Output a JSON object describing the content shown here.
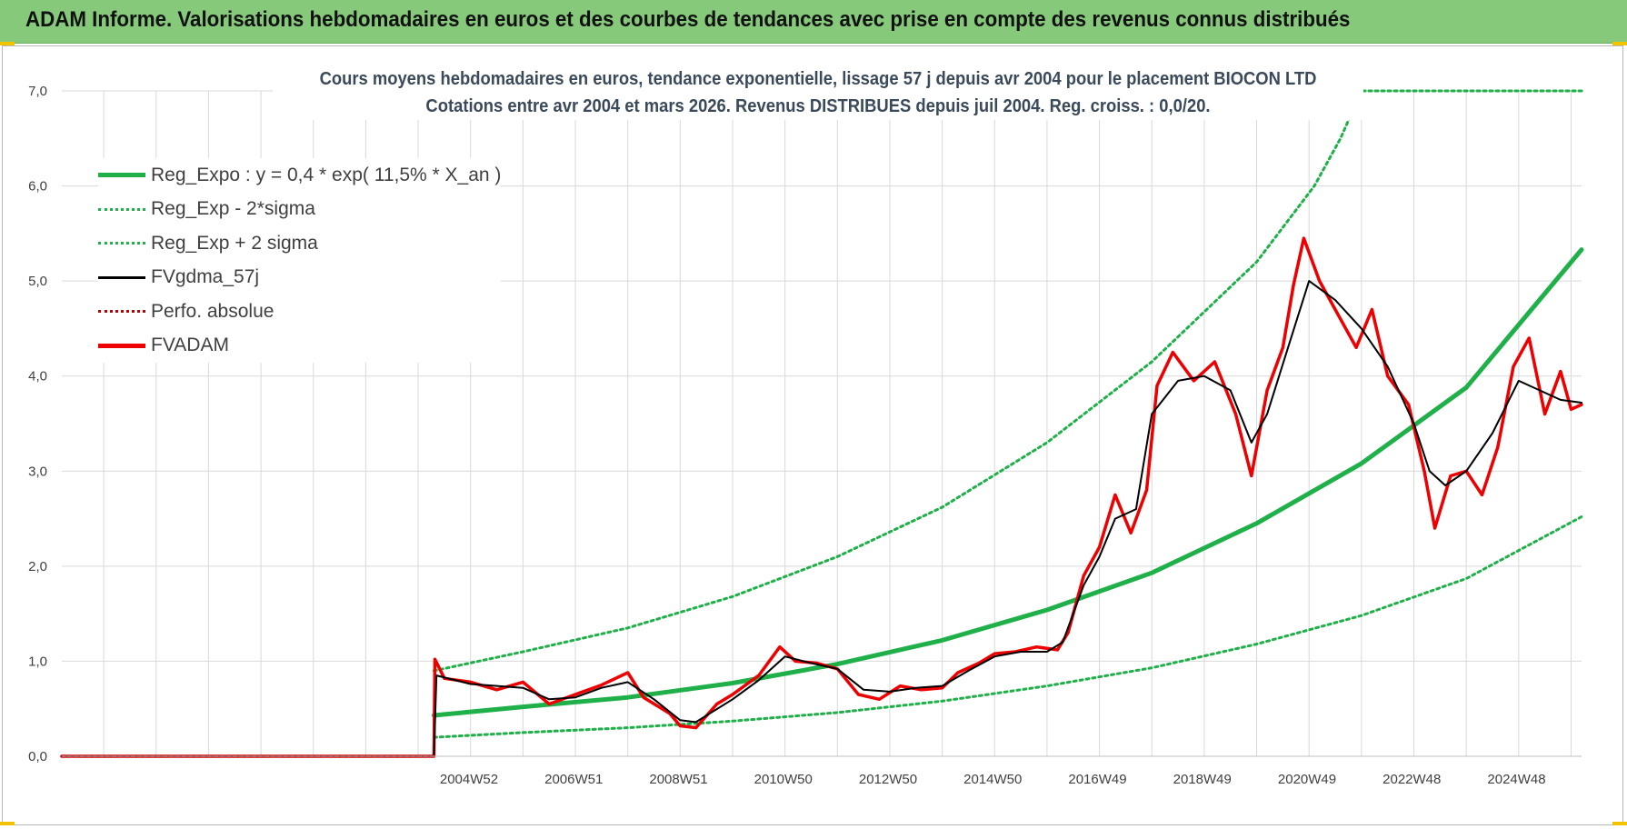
{
  "banner": {
    "title": "ADAM Informe. Valorisations hebdomadaires en euros et des courbes de tendances avec prise en compte des revenus connus distribués"
  },
  "colors": {
    "banner": "#86c97a",
    "trend": "#1fb04a",
    "band": "#1fb04a",
    "smooth": "#000000",
    "perf": "#c00000",
    "fvadam": "#ee0000",
    "grid": "#d9d9d9"
  },
  "chart_data": {
    "type": "line",
    "title": "Cours moyens hebdomadaires en euros, tendance exponentielle, lissage 57 j depuis avr 2004 pour le placement BIOCON LTD",
    "subtitle": "Cotations entre avr 2004 et mars 2026.  Revenus DISTRIBUES depuis juil 2004.  Reg. croiss. : 0,0/20.",
    "ylim": [
      0,
      7
    ],
    "yticks": [
      "0,0",
      "1,0",
      "2,0",
      "3,0",
      "4,0",
      "5,0",
      "6,0",
      "7,0"
    ],
    "xticks": [
      "2004W52",
      "2006W51",
      "2008W51",
      "2010W50",
      "2012W50",
      "2014W50",
      "2016W49",
      "2018W49",
      "2020W49",
      "2022W48",
      "2024W48"
    ],
    "x_start": 1997.2,
    "x_end": 2026.2,
    "grid": true,
    "legend_position": "top-left",
    "series": [
      {
        "name": "Reg_Expo : y = 0,4 * exp( 11,5% *  X_an )",
        "style": "solid-thick",
        "color": "#1fb04a",
        "points": [
          [
            2004.3,
            0.43
          ],
          [
            2006,
            0.52
          ],
          [
            2008,
            0.62
          ],
          [
            2010,
            0.77
          ],
          [
            2012,
            0.97
          ],
          [
            2014,
            1.22
          ],
          [
            2016,
            1.54
          ],
          [
            2018,
            1.93
          ],
          [
            2020,
            2.45
          ],
          [
            2022,
            3.08
          ],
          [
            2024,
            3.88
          ],
          [
            2026.2,
            5.33
          ]
        ]
      },
      {
        "name": "Reg_Exp - 2*sigma",
        "style": "dotted",
        "color": "#1fb04a",
        "points": [
          [
            2004.3,
            0.2
          ],
          [
            2006,
            0.25
          ],
          [
            2008,
            0.3
          ],
          [
            2010,
            0.37
          ],
          [
            2012,
            0.46
          ],
          [
            2014,
            0.58
          ],
          [
            2016,
            0.74
          ],
          [
            2018,
            0.93
          ],
          [
            2020,
            1.18
          ],
          [
            2022,
            1.48
          ],
          [
            2024,
            1.87
          ],
          [
            2026.2,
            2.52
          ]
        ]
      },
      {
        "name": "Reg_Exp + 2 sigma",
        "style": "dotted",
        "color": "#1fb04a",
        "points": [
          [
            2004.3,
            0.9
          ],
          [
            2006,
            1.1
          ],
          [
            2008,
            1.35
          ],
          [
            2010,
            1.68
          ],
          [
            2012,
            2.1
          ],
          [
            2014,
            2.62
          ],
          [
            2016,
            3.3
          ],
          [
            2018,
            4.15
          ],
          [
            2020,
            5.2
          ],
          [
            2021.1,
            6.0
          ],
          [
            2021.6,
            6.5
          ],
          [
            2022.0,
            7.0
          ],
          [
            2026.2,
            7.0
          ]
        ]
      },
      {
        "name": "FVgdma_57j",
        "style": "solid-thin",
        "color": "#000000",
        "points": [
          [
            1997.2,
            0
          ],
          [
            2004.3,
            0
          ],
          [
            2004.35,
            0.85
          ],
          [
            2005,
            0.76
          ],
          [
            2006,
            0.72
          ],
          [
            2006.5,
            0.6
          ],
          [
            2007,
            0.62
          ],
          [
            2007.5,
            0.72
          ],
          [
            2008,
            0.78
          ],
          [
            2008.5,
            0.6
          ],
          [
            2009,
            0.38
          ],
          [
            2009.3,
            0.36
          ],
          [
            2010,
            0.6
          ],
          [
            2010.5,
            0.8
          ],
          [
            2011,
            1.05
          ],
          [
            2011.5,
            0.98
          ],
          [
            2012,
            0.92
          ],
          [
            2012.5,
            0.7
          ],
          [
            2013,
            0.68
          ],
          [
            2013.5,
            0.72
          ],
          [
            2014,
            0.74
          ],
          [
            2014.5,
            0.9
          ],
          [
            2015,
            1.05
          ],
          [
            2015.5,
            1.1
          ],
          [
            2016,
            1.1
          ],
          [
            2016.3,
            1.2
          ],
          [
            2016.7,
            1.8
          ],
          [
            2017,
            2.1
          ],
          [
            2017.3,
            2.5
          ],
          [
            2017.7,
            2.6
          ],
          [
            2018.0,
            3.6
          ],
          [
            2018.5,
            3.95
          ],
          [
            2019,
            4.0
          ],
          [
            2019.5,
            3.85
          ],
          [
            2019.9,
            3.3
          ],
          [
            2020.2,
            3.6
          ],
          [
            2020.6,
            4.3
          ],
          [
            2021,
            5.0
          ],
          [
            2021.5,
            4.8
          ],
          [
            2022,
            4.5
          ],
          [
            2022.5,
            4.1
          ],
          [
            2023,
            3.5
          ],
          [
            2023.3,
            3.0
          ],
          [
            2023.6,
            2.85
          ],
          [
            2024,
            3.0
          ],
          [
            2024.5,
            3.4
          ],
          [
            2025,
            3.95
          ],
          [
            2025.4,
            3.85
          ],
          [
            2025.8,
            3.75
          ],
          [
            2026.2,
            3.72
          ]
        ]
      },
      {
        "name": "Perfo. absolue",
        "style": "dotted",
        "color": "#c00000",
        "points": [
          [
            1997.2,
            0
          ],
          [
            2004.3,
            0
          ]
        ]
      },
      {
        "name": "FVADAM",
        "style": "solid-thick",
        "color": "#ee0000",
        "points": [
          [
            1997.2,
            0
          ],
          [
            2004.3,
            0
          ],
          [
            2004.32,
            1.02
          ],
          [
            2004.5,
            0.82
          ],
          [
            2005,
            0.78
          ],
          [
            2005.5,
            0.7
          ],
          [
            2006,
            0.78
          ],
          [
            2006.5,
            0.55
          ],
          [
            2007,
            0.65
          ],
          [
            2007.5,
            0.75
          ],
          [
            2008,
            0.88
          ],
          [
            2008.3,
            0.62
          ],
          [
            2008.8,
            0.45
          ],
          [
            2009,
            0.32
          ],
          [
            2009.3,
            0.3
          ],
          [
            2009.7,
            0.55
          ],
          [
            2010,
            0.65
          ],
          [
            2010.5,
            0.85
          ],
          [
            2010.9,
            1.15
          ],
          [
            2011.2,
            1.0
          ],
          [
            2011.6,
            0.98
          ],
          [
            2012,
            0.92
          ],
          [
            2012.4,
            0.65
          ],
          [
            2012.8,
            0.6
          ],
          [
            2013.2,
            0.74
          ],
          [
            2013.6,
            0.7
          ],
          [
            2014,
            0.72
          ],
          [
            2014.3,
            0.88
          ],
          [
            2014.7,
            0.98
          ],
          [
            2015,
            1.08
          ],
          [
            2015.4,
            1.1
          ],
          [
            2015.8,
            1.15
          ],
          [
            2016.2,
            1.12
          ],
          [
            2016.4,
            1.3
          ],
          [
            2016.7,
            1.9
          ],
          [
            2017,
            2.2
          ],
          [
            2017.3,
            2.75
          ],
          [
            2017.6,
            2.35
          ],
          [
            2017.9,
            2.8
          ],
          [
            2018.1,
            3.9
          ],
          [
            2018.4,
            4.25
          ],
          [
            2018.8,
            3.95
          ],
          [
            2019.2,
            4.15
          ],
          [
            2019.6,
            3.6
          ],
          [
            2019.9,
            2.95
          ],
          [
            2020.2,
            3.85
          ],
          [
            2020.5,
            4.3
          ],
          [
            2020.7,
            4.95
          ],
          [
            2020.9,
            5.45
          ],
          [
            2021.2,
            5.0
          ],
          [
            2021.5,
            4.7
          ],
          [
            2021.9,
            4.3
          ],
          [
            2022.2,
            4.7
          ],
          [
            2022.5,
            4.0
          ],
          [
            2022.9,
            3.7
          ],
          [
            2023.2,
            3.0
          ],
          [
            2023.4,
            2.4
          ],
          [
            2023.7,
            2.95
          ],
          [
            2024,
            3.0
          ],
          [
            2024.3,
            2.75
          ],
          [
            2024.6,
            3.25
          ],
          [
            2024.9,
            4.1
          ],
          [
            2025.2,
            4.4
          ],
          [
            2025.5,
            3.6
          ],
          [
            2025.8,
            4.05
          ],
          [
            2026.0,
            3.65
          ],
          [
            2026.2,
            3.7
          ]
        ]
      }
    ]
  }
}
